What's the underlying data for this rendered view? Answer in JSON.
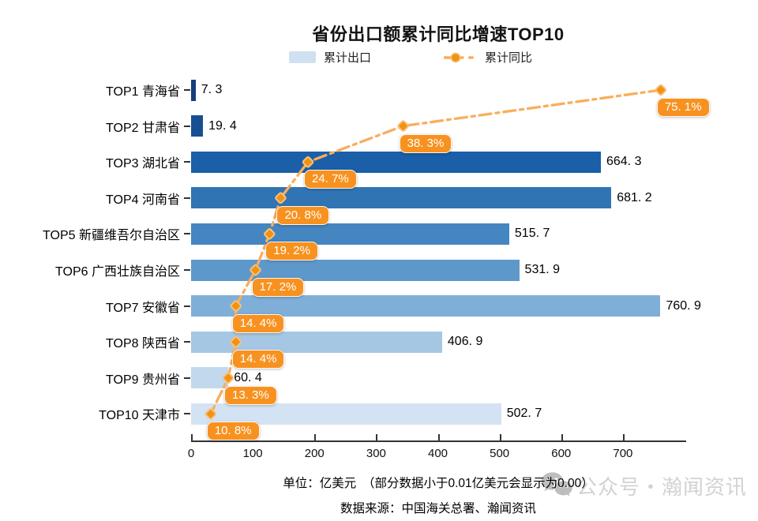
{
  "title": "省份出口额累计同比增速TOP10",
  "legend": {
    "bar_label": "累计出口",
    "line_label": "累计同比"
  },
  "chart_data": {
    "type": "bar",
    "orientation": "horizontal",
    "categories": [
      "TOP1 青海省",
      "TOP2 甘肃省",
      "TOP3 湖北省",
      "TOP4 河南省",
      "TOP5 新疆维吾尔自治区",
      "TOP6 广西壮族自治区",
      "TOP7 安徽省",
      "TOP8 陕西省",
      "TOP9 贵州省",
      "TOP10 天津市"
    ],
    "series": [
      {
        "name": "累计出口",
        "type": "bar",
        "unit": "亿美元",
        "values": [
          7.3,
          19.4,
          664.3,
          681.2,
          515.7,
          531.9,
          760.9,
          406.9,
          60.4,
          502.7
        ]
      },
      {
        "name": "累计同比",
        "type": "line",
        "unit": "%",
        "values": [
          75.1,
          38.3,
          24.7,
          20.8,
          19.2,
          17.2,
          14.4,
          14.4,
          13.3,
          10.8
        ]
      }
    ],
    "x_axis": {
      "min": 0,
      "max": 800,
      "ticks": [
        0,
        100,
        200,
        300,
        400,
        500,
        600,
        700
      ]
    },
    "secondary_axis": {
      "min": 8,
      "max": 78.5
    },
    "grid": false,
    "legend_position": "top",
    "bar_colors": [
      "#163f7c",
      "#194e93",
      "#1a5fa8",
      "#3174b4",
      "#4585c0",
      "#5e98cb",
      "#7fafd8",
      "#a5c7e4",
      "#c2d8ed",
      "#d3e3f3"
    ],
    "line_color": "#f9ae5c",
    "marker_fill": "#f0930e",
    "marker_stroke": "#f8c083",
    "pct_label_bg": "#f79220",
    "legend_bar_color": "#cfe0f1",
    "axis_color": "#333333"
  },
  "footer": {
    "unit_note": "单位：亿美元　（部分数据小于0.01亿美元会显示为0.00）",
    "source": "数据来源：中国海关总署、瀚闻资讯"
  },
  "watermark": {
    "text": "公众号・瀚闻资讯"
  }
}
